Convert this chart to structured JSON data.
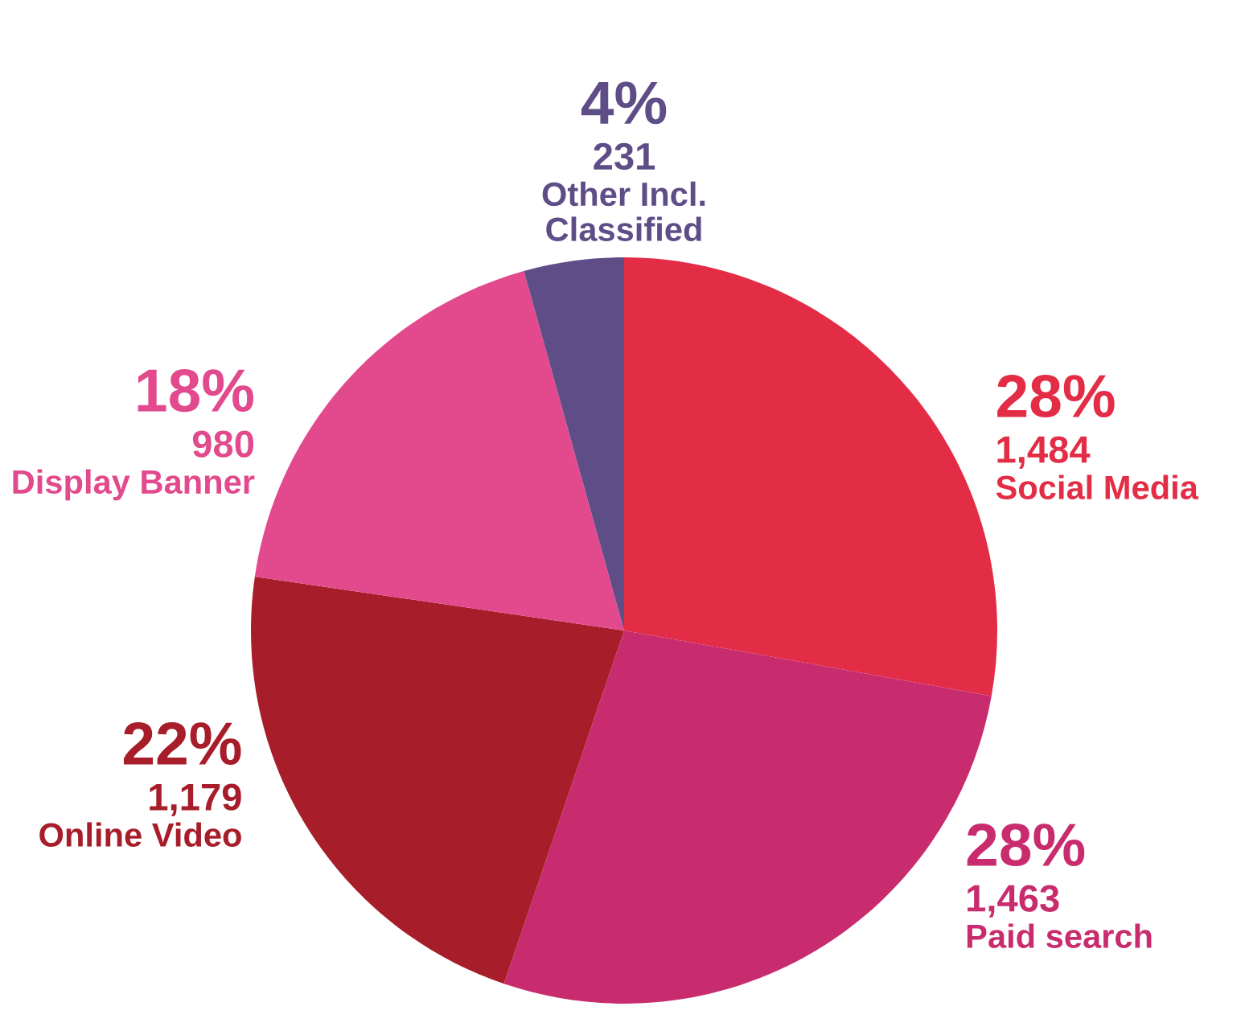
{
  "chart_data": {
    "type": "pie",
    "categories": [
      "Social Media",
      "Paid search",
      "Online Video",
      "Display Banner",
      "Other Incl.\nClassified"
    ],
    "values": [
      1484,
      1463,
      1179,
      980,
      231
    ],
    "value_labels": [
      "1,484",
      "1,463",
      "1,179",
      "980",
      "231"
    ],
    "colors": [
      "#e32c45",
      "#c92c6e",
      "#a71d2a",
      "#e24a8d",
      "#5f4d87"
    ],
    "annotations": [
      {
        "text": "28%",
        "x": "Social Media"
      },
      {
        "text": "28%",
        "x": "Paid search"
      },
      {
        "text": "22%",
        "x": "Online Video"
      },
      {
        "text": "18%",
        "x": "Display Banner"
      },
      {
        "text": "4%",
        "x": "Other Incl.\nClassified"
      }
    ],
    "legend": false
  }
}
